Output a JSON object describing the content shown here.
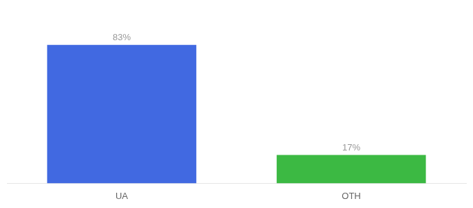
{
  "chart_data": {
    "type": "bar",
    "categories": [
      "UA",
      "OTH"
    ],
    "values": [
      83,
      17
    ],
    "value_labels": [
      "83%",
      "17%"
    ],
    "colors": [
      "#4169E1",
      "#3CB943"
    ],
    "ylim": [
      0,
      100
    ],
    "grid": false,
    "data_labels": true,
    "tick_labels": "x"
  }
}
